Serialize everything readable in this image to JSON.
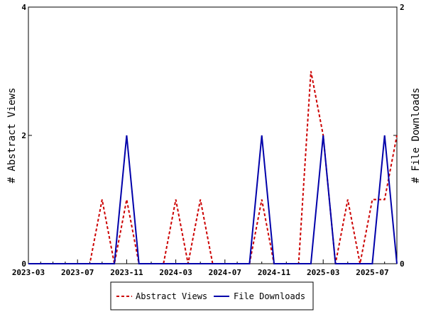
{
  "chart_data": {
    "type": "line",
    "x": [
      "2023-03",
      "2023-04",
      "2023-05",
      "2023-06",
      "2023-07",
      "2023-08",
      "2023-09",
      "2023-10",
      "2023-11",
      "2023-12",
      "2024-01",
      "2024-02",
      "2024-03",
      "2024-04",
      "2024-05",
      "2024-06",
      "2024-07",
      "2024-08",
      "2024-09",
      "2024-10",
      "2024-11",
      "2024-12",
      "2025-01",
      "2025-02",
      "2025-03",
      "2025-04",
      "2025-05",
      "2025-06",
      "2025-07",
      "2025-08",
      "2025-09"
    ],
    "x_ticks": [
      "2023-03",
      "2023-07",
      "2023-11",
      "2024-03",
      "2024-07",
      "2024-11",
      "2025-03",
      "2025-07"
    ],
    "series": [
      {
        "name": "Abstract Views",
        "axis": "left",
        "color": "#cc0000",
        "style": "dashed",
        "values": [
          0,
          0,
          0,
          0,
          0,
          0,
          1,
          0,
          1,
          0,
          0,
          0,
          1,
          0,
          1,
          0,
          0,
          0,
          0,
          1,
          0,
          0,
          0,
          3,
          2,
          0,
          1,
          0,
          1,
          1,
          2
        ]
      },
      {
        "name": "File Downloads",
        "axis": "right",
        "color": "#0000aa",
        "style": "solid",
        "values": [
          0,
          0,
          0,
          0,
          0,
          0,
          0,
          0,
          1,
          0,
          0,
          0,
          0,
          0,
          0,
          0,
          0,
          0,
          0,
          1,
          0,
          0,
          0,
          0,
          1,
          0,
          0,
          0,
          0,
          1,
          0
        ]
      }
    ],
    "ylabel_left": "# Abstract Views",
    "ylabel_right": "# File Downloads",
    "ylim_left": [
      0,
      4
    ],
    "yticks_left": [
      "0",
      "2",
      "4"
    ],
    "ylim_right": [
      0,
      2
    ],
    "yticks_right": [
      "0",
      "1",
      "2"
    ],
    "legend": "bottom-center",
    "grid": false
  }
}
